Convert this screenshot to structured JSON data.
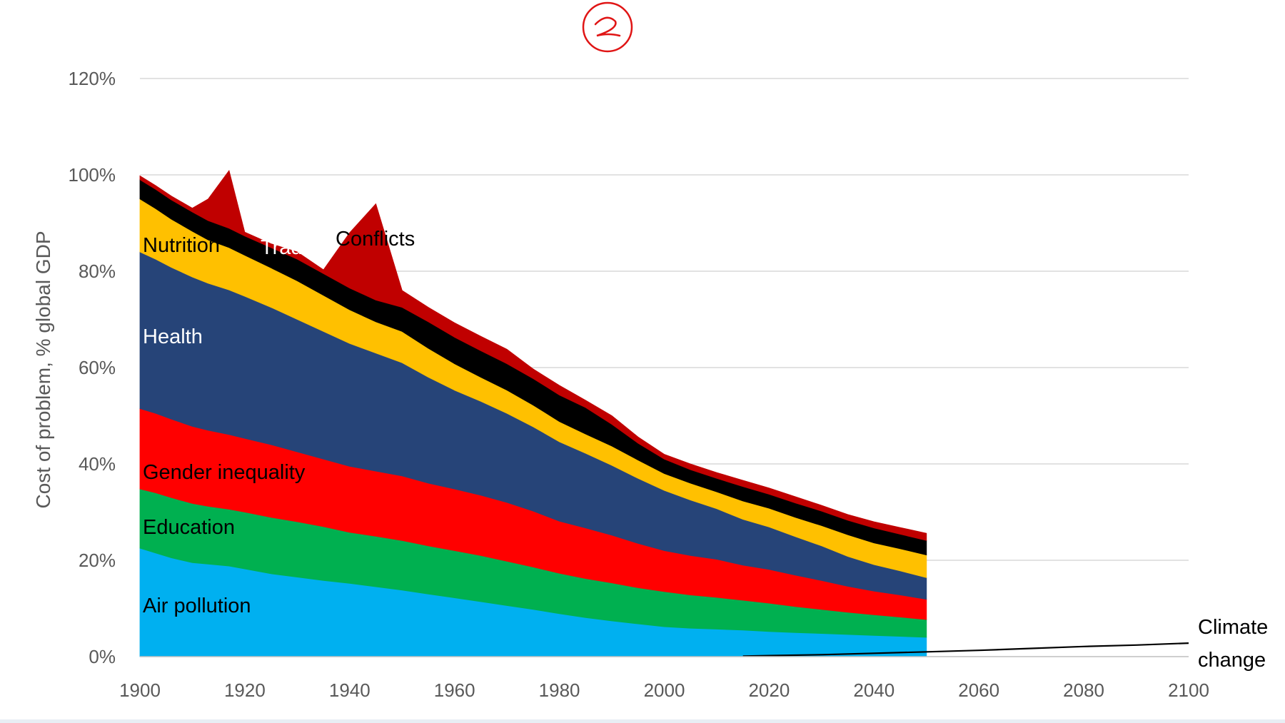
{
  "chart_data": {
    "type": "area",
    "ylabel": "Cost of problem, % global GDP",
    "xlim": [
      1900,
      2100
    ],
    "ylim": [
      0,
      120
    ],
    "x_ticks": [
      "1900",
      "1920",
      "1940",
      "1960",
      "1980",
      "2000",
      "2020",
      "2040",
      "2060",
      "2080",
      "2100"
    ],
    "y_ticks": [
      "0%",
      "20%",
      "40%",
      "60%",
      "80%",
      "100%",
      "120%"
    ],
    "grid": true,
    "x": [
      1900,
      1903,
      1906,
      1910,
      1913,
      1917,
      1920,
      1925,
      1930,
      1935,
      1940,
      1945,
      1950,
      1955,
      1960,
      1965,
      1970,
      1975,
      1980,
      1985,
      1990,
      1995,
      2000,
      2005,
      2010,
      2015,
      2020,
      2025,
      2030,
      2035,
      2040,
      2045,
      2050
    ],
    "series": [
      {
        "name": "Air pollution",
        "color": "#00b0f0",
        "values": [
          22.5,
          21.5,
          20.5,
          19.5,
          19.2,
          18.8,
          18.2,
          17.2,
          16.5,
          15.8,
          15.2,
          14.5,
          13.8,
          13.0,
          12.2,
          11.4,
          10.6,
          9.8,
          8.9,
          8.1,
          7.4,
          6.8,
          6.2,
          5.9,
          5.7,
          5.5,
          5.2,
          5.0,
          4.8,
          4.6,
          4.4,
          4.2,
          4.0
        ]
      },
      {
        "name": "Education",
        "color": "#00b050",
        "values": [
          12.3,
          12.5,
          12.5,
          12.3,
          12.0,
          11.8,
          11.8,
          11.7,
          11.5,
          11.2,
          10.6,
          10.5,
          10.3,
          10.0,
          9.8,
          9.6,
          9.2,
          8.8,
          8.4,
          8.1,
          7.9,
          7.5,
          7.3,
          6.9,
          6.6,
          6.2,
          5.9,
          5.4,
          5.0,
          4.6,
          4.3,
          4.0,
          3.7
        ]
      },
      {
        "name": "Gender inequality",
        "color": "#ff0000",
        "values": [
          16.7,
          16.5,
          16.3,
          16.0,
          15.8,
          15.5,
          15.3,
          15.1,
          14.5,
          14.0,
          13.7,
          13.5,
          13.4,
          13.0,
          12.8,
          12.5,
          12.2,
          11.6,
          10.8,
          10.5,
          9.9,
          9.2,
          8.5,
          8.2,
          7.9,
          7.3,
          7.0,
          6.5,
          6.0,
          5.4,
          4.9,
          4.6,
          4.2
        ]
      },
      {
        "name": "Health",
        "color": "#264478",
        "values": [
          32.5,
          32.0,
          31.5,
          31.0,
          30.5,
          30.0,
          29.5,
          28.5,
          27.5,
          26.5,
          25.5,
          24.5,
          23.5,
          22.0,
          20.5,
          19.5,
          18.5,
          17.5,
          16.5,
          15.5,
          14.5,
          13.5,
          12.5,
          11.5,
          10.5,
          9.5,
          8.8,
          8.0,
          7.2,
          6.2,
          5.5,
          5.0,
          4.5
        ]
      },
      {
        "name": "Nutrition",
        "color": "#ffc000",
        "values": [
          11.0,
          10.5,
          10.0,
          9.5,
          9.0,
          8.8,
          8.5,
          8.2,
          8.0,
          7.5,
          7.0,
          6.5,
          6.5,
          6.0,
          5.5,
          5.0,
          4.8,
          4.5,
          4.2,
          4.0,
          4.0,
          3.8,
          3.5,
          3.5,
          3.5,
          3.8,
          3.9,
          4.0,
          4.2,
          4.5,
          4.5,
          4.6,
          4.7
        ]
      },
      {
        "name": "Trade",
        "color": "#000000",
        "values": [
          4.0,
          4.0,
          4.0,
          4.0,
          4.0,
          4.0,
          4.0,
          4.2,
          4.5,
          4.5,
          4.5,
          4.5,
          5.0,
          5.5,
          5.5,
          5.5,
          5.5,
          5.5,
          5.5,
          5.5,
          4.5,
          3.5,
          3.0,
          2.8,
          2.8,
          3.0,
          2.9,
          3.0,
          3.0,
          3.0,
          3.1,
          3.0,
          3.0
        ]
      },
      {
        "name": "Conflicts",
        "color": "#c00000",
        "values": [
          0.8,
          0.8,
          0.8,
          0.8,
          4.5,
          12.0,
          0.8,
          0.8,
          1.5,
          0.8,
          11.5,
          20.0,
          3.5,
          3.0,
          3.0,
          3.0,
          3.0,
          2.0,
          2.0,
          1.5,
          1.8,
          1.3,
          1.0,
          1.2,
          1.2,
          1.3,
          1.3,
          1.3,
          1.2,
          1.2,
          1.3,
          1.4,
          1.5
        ]
      }
    ],
    "climate_change": {
      "name": "Climate change",
      "x": [
        2015,
        2020,
        2030,
        2040,
        2050,
        2060,
        2070,
        2080,
        2090,
        2100
      ],
      "values": [
        0.1,
        0.2,
        0.4,
        0.7,
        1.0,
        1.3,
        1.7,
        2.1,
        2.4,
        2.8
      ]
    },
    "labels": {
      "air_pollution": "Air pollution",
      "education": "Education",
      "gender": "Gender inequality",
      "health": "Health",
      "nutrition": "Nutrition",
      "trade": "Trade",
      "conflicts": "Conflicts",
      "climate_line1": "Climate",
      "climate_line2": "change"
    }
  }
}
